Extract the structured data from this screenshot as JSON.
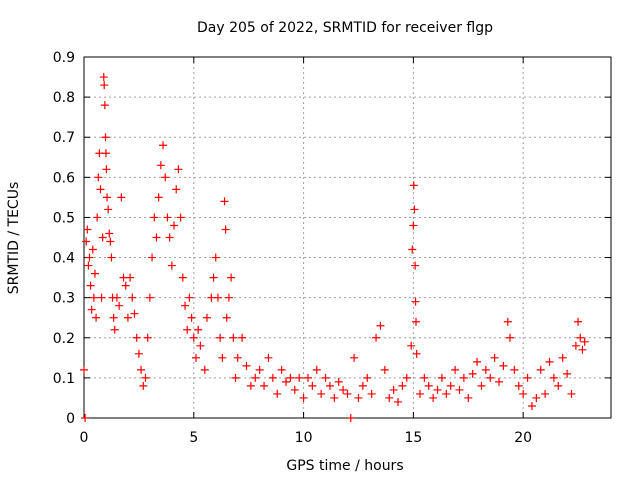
{
  "chart_data": {
    "type": "scatter",
    "title": "Day 205 of 2022, SRMTID for receiver flgp",
    "xlabel": "GPS time / hours",
    "ylabel": "SRMTID / TECUs",
    "xlim": [
      0,
      24
    ],
    "ylim": [
      0,
      0.9
    ],
    "xticks": [
      0,
      5,
      10,
      15,
      20
    ],
    "yticks": [
      0,
      0.1,
      0.2,
      0.3,
      0.4,
      0.5,
      0.6,
      0.7,
      0.8,
      0.9
    ],
    "xtick_labels": [
      "0",
      "5",
      "10",
      "15",
      "20"
    ],
    "ytick_labels": [
      "0",
      "0.1",
      "0.2",
      "0.3",
      "0.4",
      "0.5",
      "0.6",
      "0.7",
      "0.8",
      "0.9"
    ],
    "grid": true,
    "marker": "+",
    "marker_color": "#ff0000",
    "series": [
      {
        "name": "SRMTID",
        "points": [
          [
            0.0,
            0.12
          ],
          [
            0.05,
            0.0
          ],
          [
            0.1,
            0.44
          ],
          [
            0.15,
            0.47
          ],
          [
            0.2,
            0.38
          ],
          [
            0.25,
            0.4
          ],
          [
            0.3,
            0.33
          ],
          [
            0.35,
            0.27
          ],
          [
            0.4,
            0.42
          ],
          [
            0.45,
            0.3
          ],
          [
            0.5,
            0.36
          ],
          [
            0.55,
            0.25
          ],
          [
            0.6,
            0.5
          ],
          [
            0.65,
            0.6
          ],
          [
            0.7,
            0.66
          ],
          [
            0.75,
            0.57
          ],
          [
            0.8,
            0.3
          ],
          [
            0.85,
            0.45
          ],
          [
            0.9,
            0.85
          ],
          [
            0.92,
            0.83
          ],
          [
            0.95,
            0.78
          ],
          [
            0.98,
            0.7
          ],
          [
            1.0,
            0.66
          ],
          [
            1.02,
            0.62
          ],
          [
            1.05,
            0.55
          ],
          [
            1.1,
            0.52
          ],
          [
            1.15,
            0.46
          ],
          [
            1.2,
            0.44
          ],
          [
            1.25,
            0.4
          ],
          [
            1.3,
            0.3
          ],
          [
            1.35,
            0.25
          ],
          [
            1.4,
            0.22
          ],
          [
            1.5,
            0.3
          ],
          [
            1.6,
            0.28
          ],
          [
            1.7,
            0.55
          ],
          [
            1.8,
            0.35
          ],
          [
            1.9,
            0.33
          ],
          [
            2.0,
            0.25
          ],
          [
            2.1,
            0.35
          ],
          [
            2.2,
            0.3
          ],
          [
            2.3,
            0.26
          ],
          [
            2.4,
            0.2
          ],
          [
            2.5,
            0.16
          ],
          [
            2.6,
            0.12
          ],
          [
            2.7,
            0.08
          ],
          [
            2.8,
            0.1
          ],
          [
            2.9,
            0.2
          ],
          [
            3.0,
            0.3
          ],
          [
            3.1,
            0.4
          ],
          [
            3.2,
            0.5
          ],
          [
            3.3,
            0.45
          ],
          [
            3.4,
            0.55
          ],
          [
            3.5,
            0.63
          ],
          [
            3.6,
            0.68
          ],
          [
            3.7,
            0.6
          ],
          [
            3.8,
            0.5
          ],
          [
            3.9,
            0.45
          ],
          [
            4.0,
            0.38
          ],
          [
            4.1,
            0.48
          ],
          [
            4.2,
            0.57
          ],
          [
            4.3,
            0.62
          ],
          [
            4.4,
            0.5
          ],
          [
            4.5,
            0.35
          ],
          [
            4.6,
            0.28
          ],
          [
            4.7,
            0.22
          ],
          [
            4.8,
            0.3
          ],
          [
            4.9,
            0.25
          ],
          [
            5.0,
            0.2
          ],
          [
            5.1,
            0.15
          ],
          [
            5.2,
            0.22
          ],
          [
            5.3,
            0.18
          ],
          [
            5.5,
            0.12
          ],
          [
            5.6,
            0.25
          ],
          [
            5.8,
            0.3
          ],
          [
            5.9,
            0.35
          ],
          [
            6.0,
            0.4
          ],
          [
            6.1,
            0.3
          ],
          [
            6.2,
            0.2
          ],
          [
            6.3,
            0.15
          ],
          [
            6.4,
            0.54
          ],
          [
            6.45,
            0.47
          ],
          [
            6.5,
            0.25
          ],
          [
            6.6,
            0.3
          ],
          [
            6.7,
            0.35
          ],
          [
            6.8,
            0.2
          ],
          [
            6.9,
            0.1
          ],
          [
            7.0,
            0.15
          ],
          [
            7.2,
            0.2
          ],
          [
            7.4,
            0.13
          ],
          [
            7.6,
            0.08
          ],
          [
            7.8,
            0.1
          ],
          [
            8.0,
            0.12
          ],
          [
            8.2,
            0.08
          ],
          [
            8.4,
            0.15
          ],
          [
            8.6,
            0.1
          ],
          [
            8.8,
            0.06
          ],
          [
            9.0,
            0.12
          ],
          [
            9.2,
            0.09
          ],
          [
            9.4,
            0.1
          ],
          [
            9.6,
            0.07
          ],
          [
            9.8,
            0.1
          ],
          [
            10.0,
            0.05
          ],
          [
            10.2,
            0.1
          ],
          [
            10.4,
            0.08
          ],
          [
            10.6,
            0.12
          ],
          [
            10.8,
            0.06
          ],
          [
            11.0,
            0.1
          ],
          [
            11.2,
            0.08
          ],
          [
            11.4,
            0.05
          ],
          [
            11.6,
            0.09
          ],
          [
            11.8,
            0.07
          ],
          [
            12.0,
            0.06
          ],
          [
            12.15,
            0.0
          ],
          [
            12.3,
            0.15
          ],
          [
            12.5,
            0.05
          ],
          [
            12.7,
            0.08
          ],
          [
            12.9,
            0.1
          ],
          [
            13.1,
            0.06
          ],
          [
            13.3,
            0.2
          ],
          [
            13.5,
            0.23
          ],
          [
            13.7,
            0.12
          ],
          [
            13.9,
            0.05
          ],
          [
            14.1,
            0.07
          ],
          [
            14.3,
            0.04
          ],
          [
            14.5,
            0.08
          ],
          [
            14.7,
            0.1
          ],
          [
            14.9,
            0.18
          ],
          [
            14.95,
            0.42
          ],
          [
            15.0,
            0.48
          ],
          [
            15.02,
            0.58
          ],
          [
            15.05,
            0.52
          ],
          [
            15.08,
            0.38
          ],
          [
            15.1,
            0.29
          ],
          [
            15.12,
            0.24
          ],
          [
            15.15,
            0.16
          ],
          [
            15.3,
            0.06
          ],
          [
            15.5,
            0.1
          ],
          [
            15.7,
            0.08
          ],
          [
            15.9,
            0.05
          ],
          [
            16.1,
            0.07
          ],
          [
            16.3,
            0.1
          ],
          [
            16.5,
            0.06
          ],
          [
            16.7,
            0.08
          ],
          [
            16.9,
            0.12
          ],
          [
            17.1,
            0.07
          ],
          [
            17.3,
            0.1
          ],
          [
            17.5,
            0.05
          ],
          [
            17.7,
            0.11
          ],
          [
            17.9,
            0.14
          ],
          [
            18.1,
            0.08
          ],
          [
            18.3,
            0.12
          ],
          [
            18.5,
            0.1
          ],
          [
            18.7,
            0.15
          ],
          [
            18.9,
            0.09
          ],
          [
            19.1,
            0.13
          ],
          [
            19.3,
            0.24
          ],
          [
            19.4,
            0.2
          ],
          [
            19.6,
            0.12
          ],
          [
            19.8,
            0.08
          ],
          [
            20.0,
            0.06
          ],
          [
            20.2,
            0.1
          ],
          [
            20.4,
            0.03
          ],
          [
            20.6,
            0.05
          ],
          [
            20.8,
            0.12
          ],
          [
            21.0,
            0.06
          ],
          [
            21.2,
            0.14
          ],
          [
            21.4,
            0.1
          ],
          [
            21.6,
            0.08
          ],
          [
            21.8,
            0.15
          ],
          [
            22.0,
            0.11
          ],
          [
            22.2,
            0.06
          ],
          [
            22.4,
            0.18
          ],
          [
            22.5,
            0.24
          ],
          [
            22.6,
            0.2
          ],
          [
            22.7,
            0.17
          ],
          [
            22.8,
            0.19
          ]
        ]
      }
    ]
  }
}
